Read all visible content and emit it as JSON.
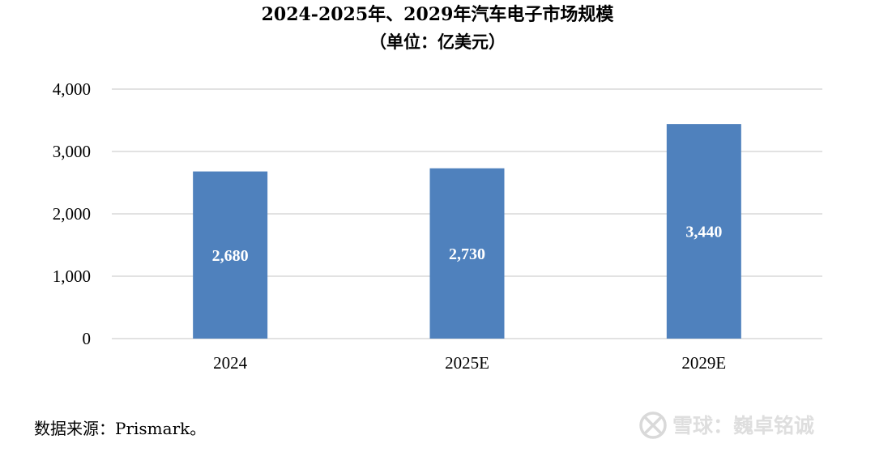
{
  "chart_data": {
    "type": "bar",
    "title": "2024-2025年、2029年汽车电子市场规模",
    "subtitle": "（单位：亿美元）",
    "categories": [
      "2024",
      "2025E",
      "2029E"
    ],
    "values": [
      2680,
      2730,
      3440
    ],
    "data_labels": [
      "2,680",
      "2,730",
      "3,440"
    ],
    "ylim": [
      0,
      4000
    ],
    "yticks": [
      0,
      1000,
      2000,
      3000,
      4000
    ],
    "ytick_labels": [
      "0",
      "1,000",
      "2,000",
      "3,000",
      "4,000"
    ],
    "xlabel": "",
    "ylabel": "",
    "grid": true,
    "legend": "none",
    "bar_color": "#4f81bd",
    "grid_color": "#d9d9d9"
  },
  "source": "数据来源：Prismark。",
  "watermark": "雪球：巍卓铭诚"
}
